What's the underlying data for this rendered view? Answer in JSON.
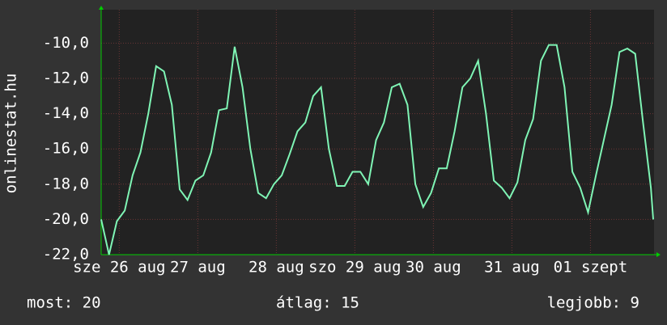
{
  "chart_data": {
    "type": "line",
    "ylabel": "onlinestat.hu",
    "x": [
      0,
      0.1,
      0.2,
      0.3,
      0.4,
      0.5,
      0.6,
      0.7,
      0.8,
      0.9,
      1.0,
      1.1,
      1.2,
      1.3,
      1.4,
      1.5,
      1.6,
      1.7,
      1.8,
      1.9,
      2.0,
      2.1,
      2.2,
      2.3,
      2.4,
      2.5,
      2.6,
      2.7,
      2.8,
      2.9,
      3.0,
      3.1,
      3.2,
      3.3,
      3.4,
      3.5,
      3.6,
      3.7,
      3.8,
      3.9,
      4.0,
      4.1,
      4.2,
      4.3,
      4.4,
      4.5,
      4.6,
      4.7,
      4.8,
      4.9,
      5.0,
      5.1,
      5.2,
      5.3,
      5.4,
      5.5,
      5.6,
      5.7,
      5.8,
      5.9,
      6.0,
      6.1,
      6.2,
      6.3,
      6.4,
      6.5,
      6.6,
      6.7,
      6.8,
      6.9,
      7.0,
      7.03
    ],
    "series": [
      {
        "name": "onlinestat.hu",
        "color": "#7ff5b5",
        "values": [
          -20,
          -22,
          -20.1,
          -19.5,
          -17.5,
          -16.2,
          -14,
          -11.3,
          -11.6,
          -13.5,
          -18.3,
          -18.9,
          -17.8,
          -17.5,
          -16.2,
          -13.8,
          -13.7,
          -10.2,
          -12.5,
          -16,
          -18.5,
          -18.8,
          -18,
          -17.5,
          -16.3,
          -15,
          -14.5,
          -13,
          -12.5,
          -16,
          -18.1,
          -18.1,
          -17.3,
          -17.3,
          -18,
          -15.5,
          -14.5,
          -12.5,
          -12.3,
          -13.5,
          -18,
          -19.3,
          -18.5,
          -17.1,
          -17.1,
          -15,
          -12.5,
          -12,
          -11,
          -14,
          -17.8,
          -18.2,
          -18.8,
          -17.9,
          -15.5,
          -14.3,
          -11,
          -10.1,
          -10.1,
          -12.5,
          -17.3,
          -18.2,
          -19.6,
          -17.5,
          -15.5,
          -13.5,
          -10.5,
          -10.3,
          -10.6,
          -14.5,
          -18.2,
          -20
        ]
      }
    ],
    "xlim": [
      0,
      7.04
    ],
    "xticks": [
      {
        "value": 0.23,
        "label": "sze 26 aug"
      },
      {
        "value": 1.23,
        "label": "27 aug"
      },
      {
        "value": 2.23,
        "label": "28 aug"
      },
      {
        "value": 3.23,
        "label": "szo 29 aug"
      },
      {
        "value": 4.23,
        "label": "30 aug"
      },
      {
        "value": 5.23,
        "label": "31 aug"
      },
      {
        "value": 6.23,
        "label": "01 szept"
      }
    ],
    "ylim": [
      -22,
      -8.1
    ],
    "yticks": [
      {
        "value": -10,
        "label": "-10,0"
      },
      {
        "value": -12,
        "label": "-12,0"
      },
      {
        "value": -14,
        "label": "-14,0"
      },
      {
        "value": -16,
        "label": "-16,0"
      },
      {
        "value": -18,
        "label": "-18,0"
      },
      {
        "value": -20,
        "label": "-20,0"
      },
      {
        "value": -22,
        "label": "-22,0"
      }
    ],
    "grid": true,
    "footer": {
      "most": "most: 20",
      "atlag": "átlag: 15",
      "legjobb": "legjobb: 9"
    }
  }
}
